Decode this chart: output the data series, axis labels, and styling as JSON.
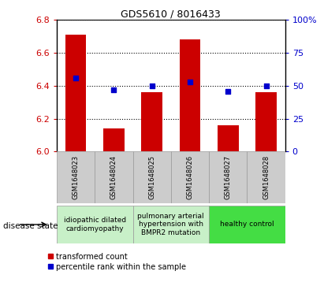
{
  "title": "GDS5610 / 8016433",
  "samples": [
    "GSM1648023",
    "GSM1648024",
    "GSM1648025",
    "GSM1648026",
    "GSM1648027",
    "GSM1648028"
  ],
  "transformed_counts": [
    6.71,
    6.14,
    6.36,
    6.68,
    6.16,
    6.36
  ],
  "percentile_ranks": [
    56,
    47,
    50,
    53,
    46,
    50
  ],
  "ylim_left": [
    6.0,
    6.8
  ],
  "ylim_right": [
    0,
    100
  ],
  "yticks_left": [
    6.0,
    6.2,
    6.4,
    6.6,
    6.8
  ],
  "yticks_right": [
    0,
    25,
    50,
    75,
    100
  ],
  "bar_color": "#cc0000",
  "dot_color": "#0000cc",
  "bar_bottom": 6.0,
  "disease_groups": [
    {
      "label": "idiopathic dilated\ncardiomyopathy",
      "start": 0,
      "end": 1,
      "color": "#c8f0c8"
    },
    {
      "label": "pulmonary arterial\nhypertension with\nBMPR2 mutation",
      "start": 2,
      "end": 3,
      "color": "#c8f0c8"
    },
    {
      "label": "healthy control",
      "start": 4,
      "end": 5,
      "color": "#44dd44"
    }
  ],
  "disease_state_label": "disease state",
  "legend_red_label": "transformed count",
  "legend_blue_label": "percentile rank within the sample",
  "left_axis_color": "#cc0000",
  "right_axis_color": "#0000cc",
  "sample_box_color": "#cccccc",
  "border_color": "#999999"
}
